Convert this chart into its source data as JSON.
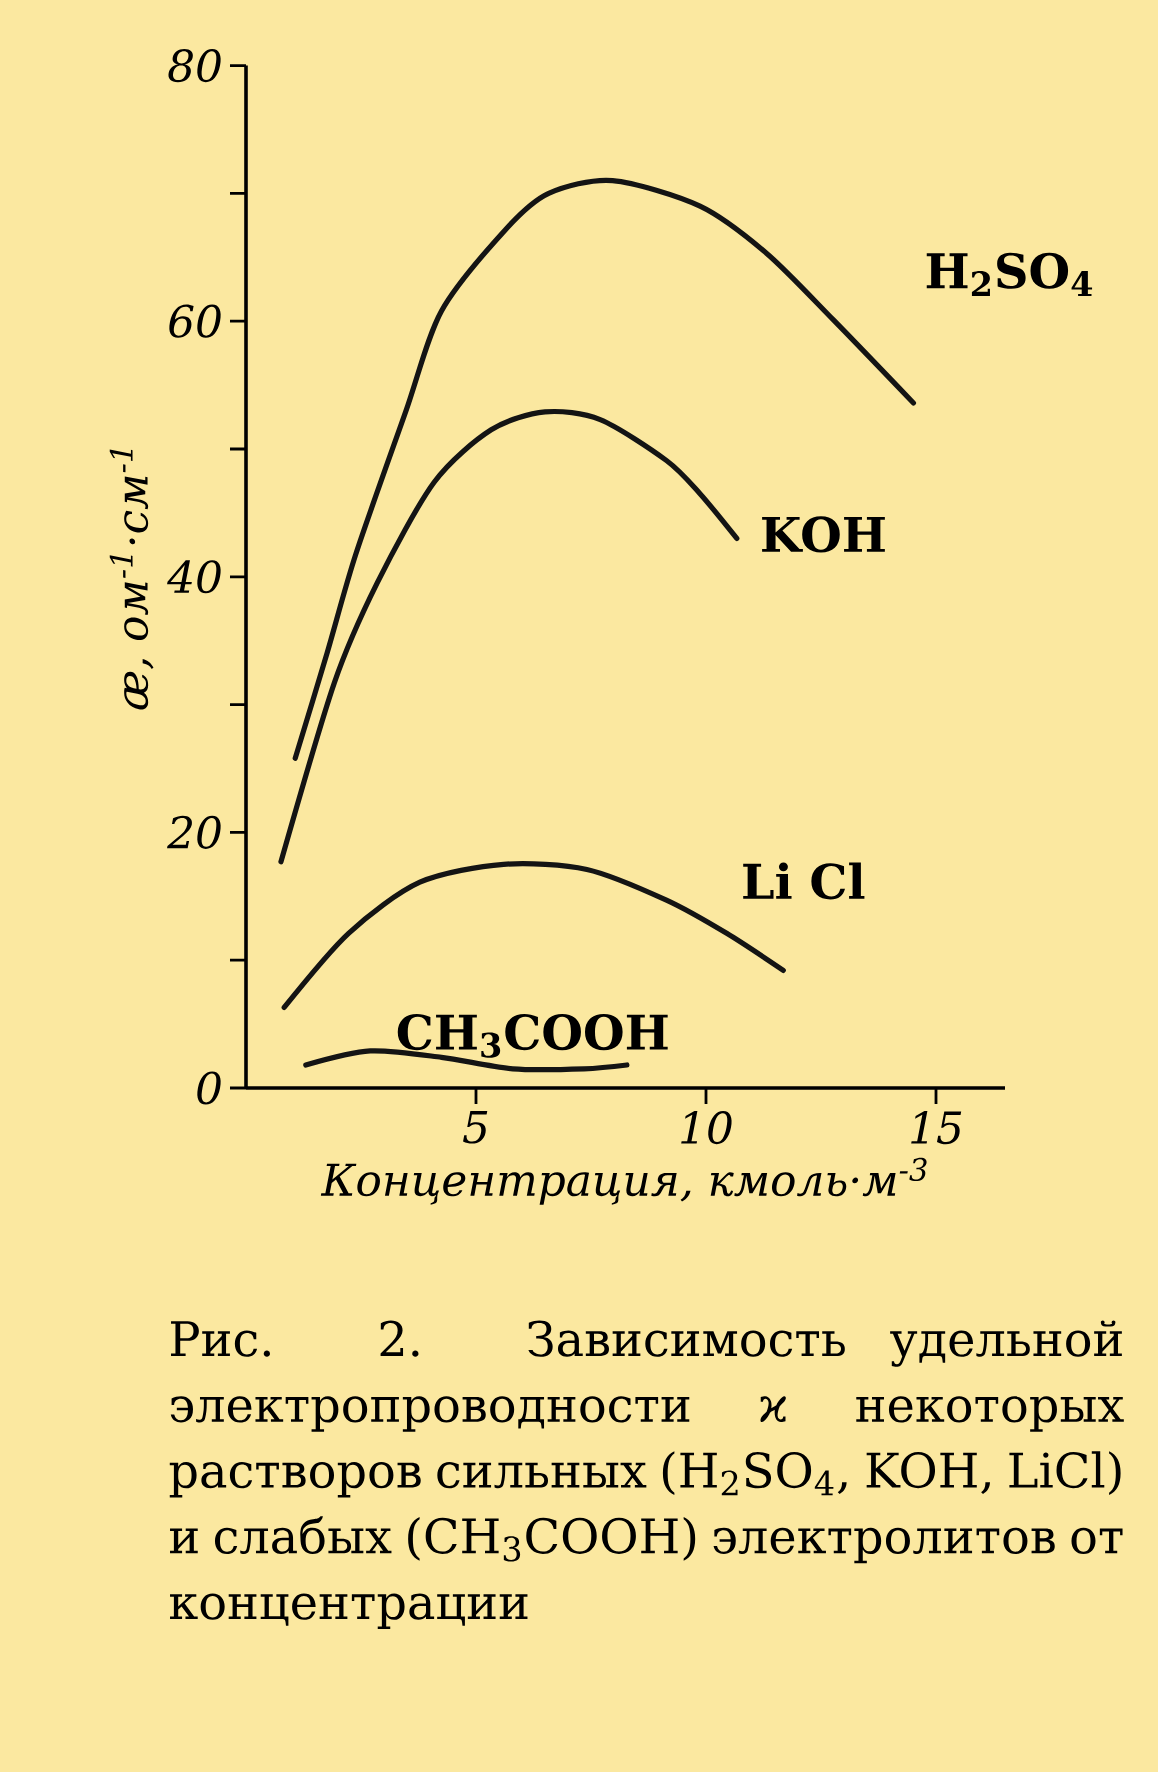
{
  "chart_data": {
    "type": "line",
    "xlabel": "Концентрация, кмоль·м$^{-3}$",
    "ylabel": "æ, ом$^{-1}$·см$^{-1}$",
    "xlim": [
      0,
      16.5
    ],
    "ylim": [
      0,
      80
    ],
    "xticks": [
      5,
      10,
      15
    ],
    "yticks": [
      0,
      {
        "value": 10,
        "label": null
      },
      20,
      {
        "value": 30,
        "label": null
      },
      40,
      {
        "value": 50,
        "label": null
      },
      60,
      {
        "value": 70,
        "label": null
      },
      80
    ],
    "grid": false,
    "legend": false,
    "marker": "none",
    "line_style": "solid",
    "series": [
      {
        "name": "H$_{2}$SO$_{4}$",
        "color": "#141414",
        "x": [
          1.07,
          1.76,
          2.39,
          3.47,
          4.25,
          5.65,
          6.58,
          7.97,
          9.87,
          11.32,
          12.77,
          14.51
        ],
        "values": [
          25.8,
          34.0,
          41.8,
          52.9,
          60.8,
          67.2,
          70.0,
          71.0,
          69.0,
          65.3,
          60.1,
          53.6
        ]
      },
      {
        "name": "KOH",
        "color": "#141414",
        "x": [
          0.76,
          1.92,
          2.85,
          4.09,
          5.33,
          6.5,
          7.7,
          9.14,
          9.87,
          10.67
        ],
        "values": [
          17.7,
          31.7,
          39.5,
          47.4,
          51.5,
          52.9,
          52.3,
          49.1,
          46.5,
          43.0
        ]
      },
      {
        "name": "Li Cl",
        "color": "#141414",
        "x": [
          0.83,
          2.23,
          3.78,
          5.6,
          7.41,
          9.14,
          10.45,
          11.68
        ],
        "values": [
          6.3,
          12.1,
          16.1,
          17.5,
          17.1,
          14.7,
          12.1,
          9.2
        ]
      },
      {
        "name": "CH$_{3}$COOH",
        "color": "#141414",
        "x": [
          1.3,
          2.7,
          4.25,
          5.8,
          7.35,
          8.28
        ],
        "values": [
          1.8,
          2.9,
          2.4,
          1.5,
          1.5,
          1.8
        ]
      }
    ],
    "annotations": [
      "Рис. 2. Зависимость удельной электропроводности ϰ некоторых растворов сильных (H$_{2}$SO$_{4}$, KOH, LiCl) и слабых (CH$_{3}$COOH) электролитов от концентрации"
    ]
  }
}
